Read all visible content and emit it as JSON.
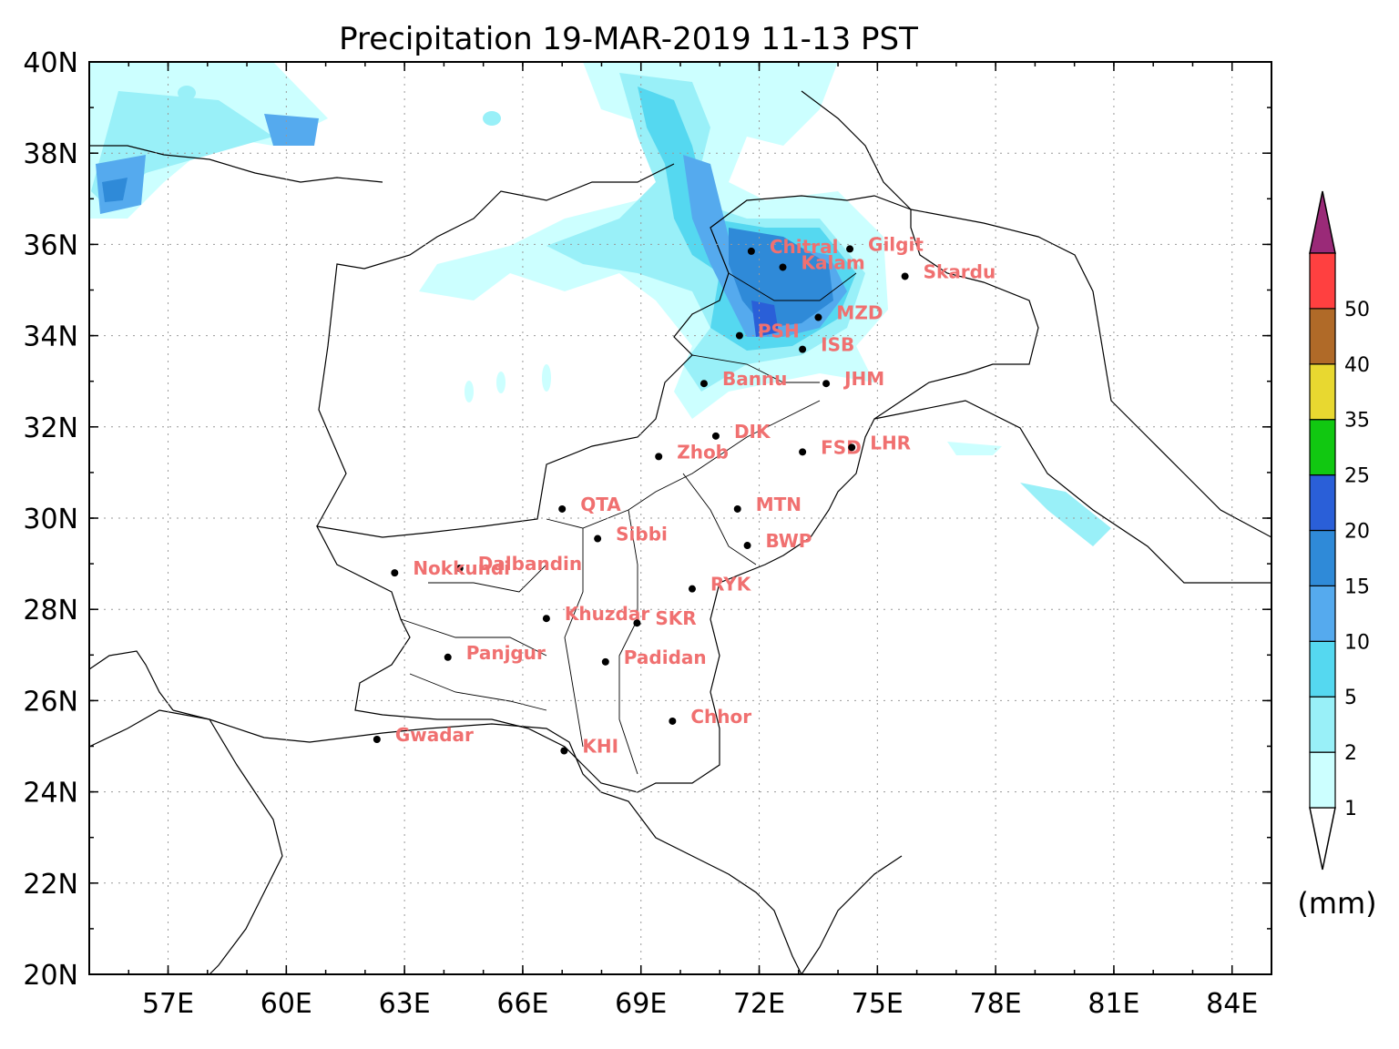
{
  "title": "Precipitation 19-MAR-2019 11-13 PST",
  "axes": {
    "lon_labels": [
      "57E",
      "60E",
      "63E",
      "66E",
      "69E",
      "72E",
      "75E",
      "78E",
      "81E",
      "84E"
    ],
    "lon_values": [
      57,
      60,
      63,
      66,
      69,
      72,
      75,
      78,
      81,
      84
    ],
    "lat_labels": [
      "40N",
      "38N",
      "36N",
      "34N",
      "32N",
      "30N",
      "28N",
      "26N",
      "24N",
      "22N",
      "20N"
    ],
    "lat_values": [
      40,
      38,
      36,
      34,
      32,
      30,
      28,
      26,
      24,
      22,
      20
    ],
    "lon_range": [
      55,
      85
    ],
    "lat_range": [
      20,
      40
    ],
    "grid": "dotted"
  },
  "colorbar": {
    "levels": [
      "1",
      "2",
      "5",
      "10",
      "15",
      "20",
      "25",
      "35",
      "40",
      "50"
    ],
    "colors": [
      "#ccffff",
      "#99f0f8",
      "#55d8f0",
      "#55aaee",
      "#2f8ad8",
      "#2a5fd8",
      "#11c811",
      "#e8d830",
      "#b06a28",
      "#ff4040"
    ],
    "over_color": "#9a2a78",
    "under_color": "#ffffff",
    "unit": "(mm)"
  },
  "cities": [
    {
      "name": "Chitral",
      "lon": 71.8,
      "lat": 35.85
    },
    {
      "name": "Gilgit",
      "lon": 74.3,
      "lat": 35.9
    },
    {
      "name": "Kalam",
      "lon": 72.6,
      "lat": 35.5
    },
    {
      "name": "Skardu",
      "lon": 75.7,
      "lat": 35.3
    },
    {
      "name": "MZD",
      "lon": 73.5,
      "lat": 34.4
    },
    {
      "name": "PSH",
      "lon": 71.5,
      "lat": 34.0
    },
    {
      "name": "ISB",
      "lon": 73.1,
      "lat": 33.7
    },
    {
      "name": "Bannu",
      "lon": 70.6,
      "lat": 32.95
    },
    {
      "name": "JHM",
      "lon": 73.7,
      "lat": 32.95
    },
    {
      "name": "DIK",
      "lon": 70.9,
      "lat": 31.8
    },
    {
      "name": "FSD",
      "lon": 73.1,
      "lat": 31.45
    },
    {
      "name": "LHR",
      "lon": 74.35,
      "lat": 31.55
    },
    {
      "name": "Zhob",
      "lon": 69.45,
      "lat": 31.35
    },
    {
      "name": "QTA",
      "lon": 67.0,
      "lat": 30.2
    },
    {
      "name": "MTN",
      "lon": 71.45,
      "lat": 30.2
    },
    {
      "name": "Sibbi",
      "lon": 67.9,
      "lat": 29.55
    },
    {
      "name": "BWP",
      "lon": 71.7,
      "lat": 29.4
    },
    {
      "name": "Dalbandin",
      "lon": 64.4,
      "lat": 28.9
    },
    {
      "name": "Nokkundi",
      "lon": 62.75,
      "lat": 28.8
    },
    {
      "name": "RYK",
      "lon": 70.3,
      "lat": 28.45
    },
    {
      "name": "Khuzdar",
      "lon": 66.6,
      "lat": 27.8
    },
    {
      "name": "SKR",
      "lon": 68.9,
      "lat": 27.7
    },
    {
      "name": "Panjgur",
      "lon": 64.1,
      "lat": 26.95
    },
    {
      "name": "Padidan",
      "lon": 68.1,
      "lat": 26.85
    },
    {
      "name": "Chhor",
      "lon": 69.8,
      "lat": 25.55
    },
    {
      "name": "Gwadar",
      "lon": 62.3,
      "lat": 25.15
    },
    {
      "name": "KHI",
      "lon": 67.05,
      "lat": 24.9
    }
  ]
}
